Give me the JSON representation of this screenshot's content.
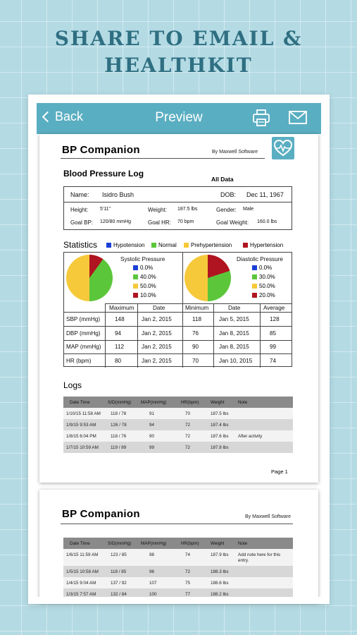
{
  "headline": {
    "line1": "SHARE TO EMAIL &",
    "line2": "HEALTHKIT"
  },
  "navbar": {
    "back_label": "Back",
    "title": "Preview",
    "icons": [
      "printer-icon",
      "mail-icon"
    ]
  },
  "colors": {
    "accent": "#5aaec1",
    "hypotension": "#1a3fd6",
    "normal": "#5cc63a",
    "prehypertension": "#f6c93b",
    "hypertension": "#b01420"
  },
  "report": {
    "app_title": "BP  Companion",
    "byline": "By Maxwell Software",
    "log_title": "Blood Pressure Log",
    "range": "All Data",
    "patient": {
      "name_label": "Name:",
      "name": "Isidro Bush",
      "dob_label": "DOB:",
      "dob": "Dec 11, 1967",
      "height_label": "Height:",
      "height": "5'11\"",
      "weight_label": "Weight:",
      "weight": "187.5 lbs",
      "gender_label": "Gender:",
      "gender": "Male",
      "goal_bp_label": "Goal BP:",
      "goal_bp": "120/80 mmHg",
      "goal_hr_label": "Goal HR:",
      "goal_hr": "70 bpm",
      "goal_weight_label": "Goal Weight:",
      "goal_weight": "160.0 lbs"
    },
    "statistics": {
      "title": "Statistics",
      "legend": [
        "Hypotension",
        "Normal",
        "Prehypertension",
        "Hypertension"
      ],
      "systolic": {
        "title": "Systolic Pressure",
        "values": [
          "0.0%",
          "40.0%",
          "50.0%",
          "10.0%"
        ],
        "fractions": [
          0,
          0.4,
          0.5,
          0.1
        ]
      },
      "diastolic": {
        "title": "Diastolic Pressure",
        "values": [
          "0.0%",
          "30.0%",
          "50.0%",
          "20.0%"
        ],
        "fractions": [
          0,
          0.3,
          0.5,
          0.2
        ]
      },
      "headers": [
        "Maximum",
        "Date",
        "Minimum",
        "Date",
        "Average"
      ],
      "rows": [
        {
          "label": "SBP (mmHg)",
          "max": "148",
          "max_date": "Jan 2, 2015",
          "min": "118",
          "min_date": "Jan 5, 2015",
          "avg": "128"
        },
        {
          "label": "DBP (mmHg)",
          "max": "94",
          "max_date": "Jan 2, 2015",
          "min": "76",
          "min_date": "Jan 8, 2015",
          "avg": "85"
        },
        {
          "label": "MAP (mmHg)",
          "max": "112",
          "max_date": "Jan 2, 2015",
          "min": "90",
          "min_date": "Jan 8, 2015",
          "avg": "99"
        },
        {
          "label": "HR (bpm)",
          "max": "80",
          "max_date": "Jan 2, 2015",
          "min": "70",
          "min_date": "Jan 10, 2015",
          "avg": "74"
        }
      ]
    },
    "logs": {
      "title": "Logs",
      "headers": [
        "Date Time",
        "S/D(mmHg)",
        "MAP(mmHg)",
        "HR(bpm)",
        "Weight",
        "Note"
      ],
      "rows": [
        {
          "dt": "1/10/15 11:58 AM",
          "sd": "118 / 78",
          "map": "91",
          "hr": "70",
          "weight": "187.5 lbs",
          "note": ""
        },
        {
          "dt": "1/9/15 9:53 AM",
          "sd": "126 / 78",
          "map": "94",
          "hr": "72",
          "weight": "187.4 lbs",
          "note": ""
        },
        {
          "dt": "1/8/15 6:04 PM",
          "sd": "118 / 76",
          "map": "90",
          "hr": "72",
          "weight": "187.6 lbs",
          "note": "After activity"
        },
        {
          "dt": "1/7/15 10:59 AM",
          "sd": "119 / 89",
          "map": "99",
          "hr": "72",
          "weight": "187.8 lbs",
          "note": ""
        }
      ]
    },
    "page_label": "Page 1"
  },
  "page2": {
    "app_title": "BP  Companion",
    "byline": "By Maxwell Software",
    "headers": [
      "Date Time",
      "S/D(mmHg)",
      "MAP(mmHg)",
      "HR(bpm)",
      "Weight",
      "Note"
    ],
    "rows": [
      {
        "dt": "1/6/15 11:59 AM",
        "sd": "123 / 85",
        "map": "98",
        "hr": "74",
        "weight": "187.9 lbs",
        "note_line1": "Add note here for this",
        "note_line2": "entry."
      },
      {
        "dt": "1/5/15 10:58 AM",
        "sd": "118 / 85",
        "map": "96",
        "hr": "72",
        "weight": "188.3 lbs",
        "note_line1": "",
        "note_line2": ""
      },
      {
        "dt": "1/4/15 9:04 AM",
        "sd": "137 / 92",
        "map": "107",
        "hr": "75",
        "weight": "188.6 lbs",
        "note_line1": "",
        "note_line2": ""
      },
      {
        "dt": "1/3/15 7:57 AM",
        "sd": "132 / 84",
        "map": "100",
        "hr": "77",
        "weight": "188.2 lbs",
        "note_line1": "",
        "note_line2": ""
      }
    ]
  }
}
